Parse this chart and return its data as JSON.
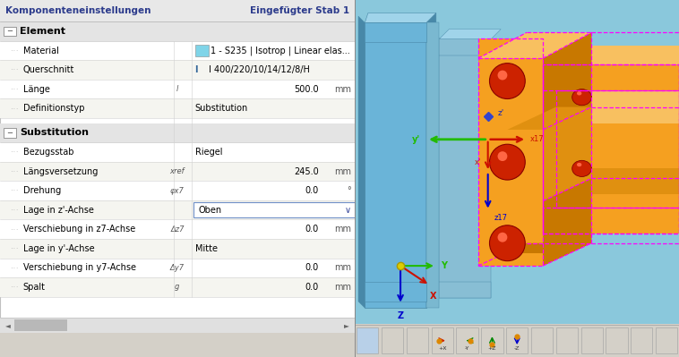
{
  "title_left": "Komponenteneinstellungen",
  "title_right": "Eingefügter Stab 1",
  "header_text_color": "#2c3b8c",
  "left_panel_bg": "#ffffff",
  "left_panel_border": "#c0c0c0",
  "header_bg": "#e8e8e8",
  "section_bg": "#e4e4e4",
  "section_text": "#000000",
  "row_bg1": "#ffffff",
  "row_bg2": "#f5f5f0",
  "divider_color": "#d0d0d0",
  "label_color": "#000000",
  "value_color": "#000000",
  "unit_color": "#555555",
  "symbol_color": "#555555",
  "dropdown_border": "#7090c8",
  "dropdown_bg": "#ffffff",
  "section1_label": "Element",
  "section2_label": "Substitution",
  "rows_element": [
    {
      "label": "Material",
      "symbol": "",
      "value": "1 - S235 | Isotrop | Linear elas...",
      "unit": "",
      "color_box": "#7fd4e8",
      "icon": null
    },
    {
      "label": "Querschnitt",
      "symbol": "",
      "value": "I 400/220/10/14/12/8/H",
      "unit": "",
      "color_box": null,
      "icon": "I"
    },
    {
      "label": "Länge",
      "symbol": "l",
      "value": "500.0",
      "unit": "mm"
    },
    {
      "label": "Definitionstyp",
      "symbol": "",
      "value": "Substitution",
      "unit": ""
    }
  ],
  "rows_substitution": [
    {
      "label": "Bezugsstab",
      "symbol": "",
      "value": "Riegel",
      "unit": ""
    },
    {
      "label": "Längsversetzung",
      "symbol": "xref",
      "value": "245.0",
      "unit": "mm"
    },
    {
      "label": "Drehung",
      "symbol": "φx7",
      "value": "0.0",
      "unit": "°"
    },
    {
      "label": "Lage in z'-Achse",
      "symbol": "",
      "value": "Oben",
      "unit": "",
      "dropdown": true
    },
    {
      "label": "Verschiebung in z7-Achse",
      "symbol": "Δz7",
      "value": "0.0",
      "unit": "mm"
    },
    {
      "label": "Lage in y'-Achse",
      "symbol": "",
      "value": "Mitte",
      "unit": ""
    },
    {
      "label": "Verschiebung in y7-Achse",
      "symbol": "Δy7",
      "value": "0.0",
      "unit": "mm"
    },
    {
      "label": "Spalt",
      "symbol": "g",
      "value": "0.0",
      "unit": "mm"
    }
  ],
  "scrollbar_bg": "#e0e0e0",
  "scrollbar_thumb": "#b0b0b0",
  "view_bg": "#8ac8dc",
  "blue_col": "#6ab4d8",
  "blue_col_light": "#a0d4ea",
  "blue_col_dark": "#4888a8",
  "orange_face": "#f5a020",
  "orange_top": "#f8c060",
  "orange_dark": "#c87800",
  "orange_side": "#e09010",
  "magenta": "#ff00ff",
  "red_bolt": "#cc2200",
  "red_bolt_hi": "#ff6644",
  "green_arrow": "#22bb00",
  "red_arrow": "#cc1100",
  "blue_arrow": "#0000cc",
  "yellow_origin": "#ddcc00",
  "toolbar_bg": "#d4d0c8",
  "toolbar_btn_bg": "#d8d8d8",
  "toolbar_btn_border": "#a8a8a8"
}
